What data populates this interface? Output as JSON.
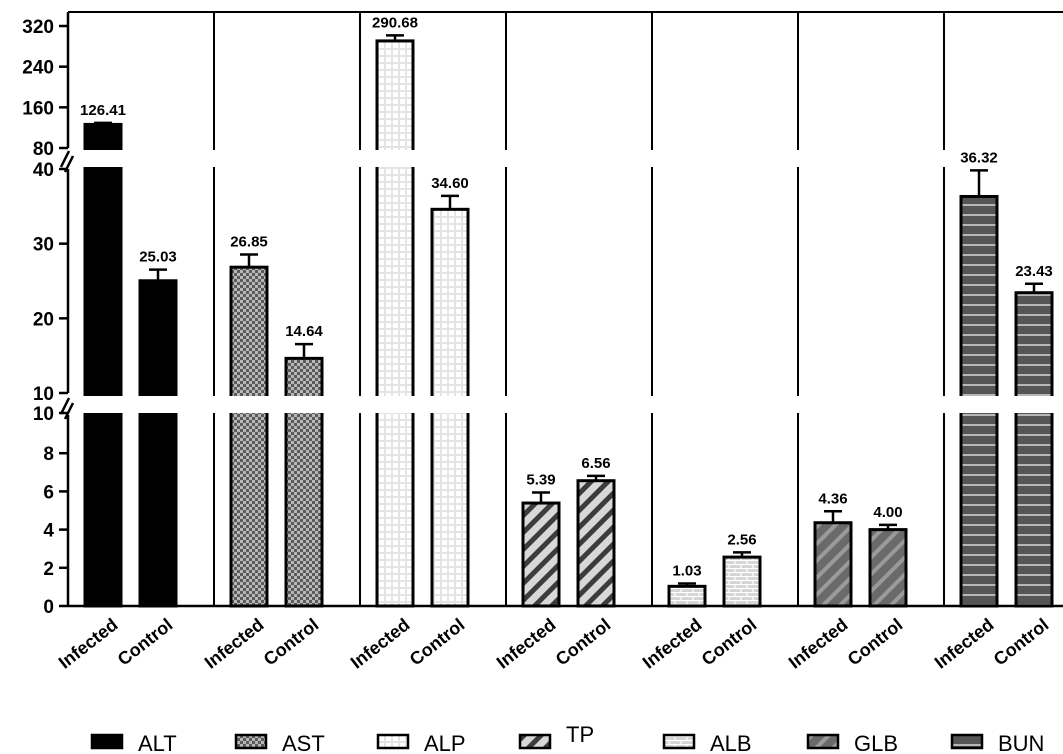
{
  "chart_data": {
    "type": "bar",
    "title": "",
    "xlabel": "",
    "ylabel": "",
    "axis_breaks": [
      [
        10,
        10
      ],
      [
        40,
        80
      ]
    ],
    "ylim": [
      0,
      320
    ],
    "y_ticks_bottom": [
      "0",
      "2",
      "4",
      "6",
      "8",
      "10"
    ],
    "y_ticks_middle": [
      "10",
      "20",
      "30",
      "40"
    ],
    "y_ticks_top": [
      "80",
      "160",
      "240",
      "320"
    ],
    "categories": [
      "Infected",
      "Control"
    ],
    "groups": [
      {
        "name": "ALT",
        "pattern": "solid",
        "values": [
          126.41,
          25.03
        ],
        "labels": [
          "126.41",
          "25.03"
        ],
        "errors": [
          3,
          1.5
        ]
      },
      {
        "name": "AST",
        "pattern": "checker",
        "values": [
          26.85,
          14.64
        ],
        "labels": [
          "26.85",
          "14.64"
        ],
        "errors": [
          1.7,
          1.9
        ]
      },
      {
        "name": "ALP",
        "pattern": "grid",
        "values": [
          290.68,
          34.6
        ],
        "labels": [
          "290.68",
          "34.60"
        ],
        "errors": [
          11,
          1.8
        ]
      },
      {
        "name": "TP",
        "pattern": "diagonal",
        "values": [
          5.39,
          6.56
        ],
        "labels": [
          "5.39",
          "6.56"
        ],
        "errors": [
          0.55,
          0.25
        ]
      },
      {
        "name": "ALB",
        "pattern": "brick",
        "values": [
          1.03,
          2.56
        ],
        "labels": [
          "1.03",
          "2.56"
        ],
        "errors": [
          0.15,
          0.25
        ]
      },
      {
        "name": "GLB",
        "pattern": "dark-diagonal",
        "values": [
          4.36,
          4.0
        ],
        "labels": [
          "4.36",
          "4.00"
        ],
        "errors": [
          0.6,
          0.25
        ]
      },
      {
        "name": "BUN",
        "pattern": "stripes",
        "values": [
          36.32,
          23.43
        ],
        "labels": [
          "36.32",
          "23.43"
        ],
        "errors": [
          3.5,
          1.2
        ]
      }
    ],
    "legend": [
      "ALT",
      "AST",
      "ALP",
      "TP",
      "ALB",
      "GLB",
      "BUN"
    ],
    "legend_position": "bottom",
    "grid": false
  }
}
